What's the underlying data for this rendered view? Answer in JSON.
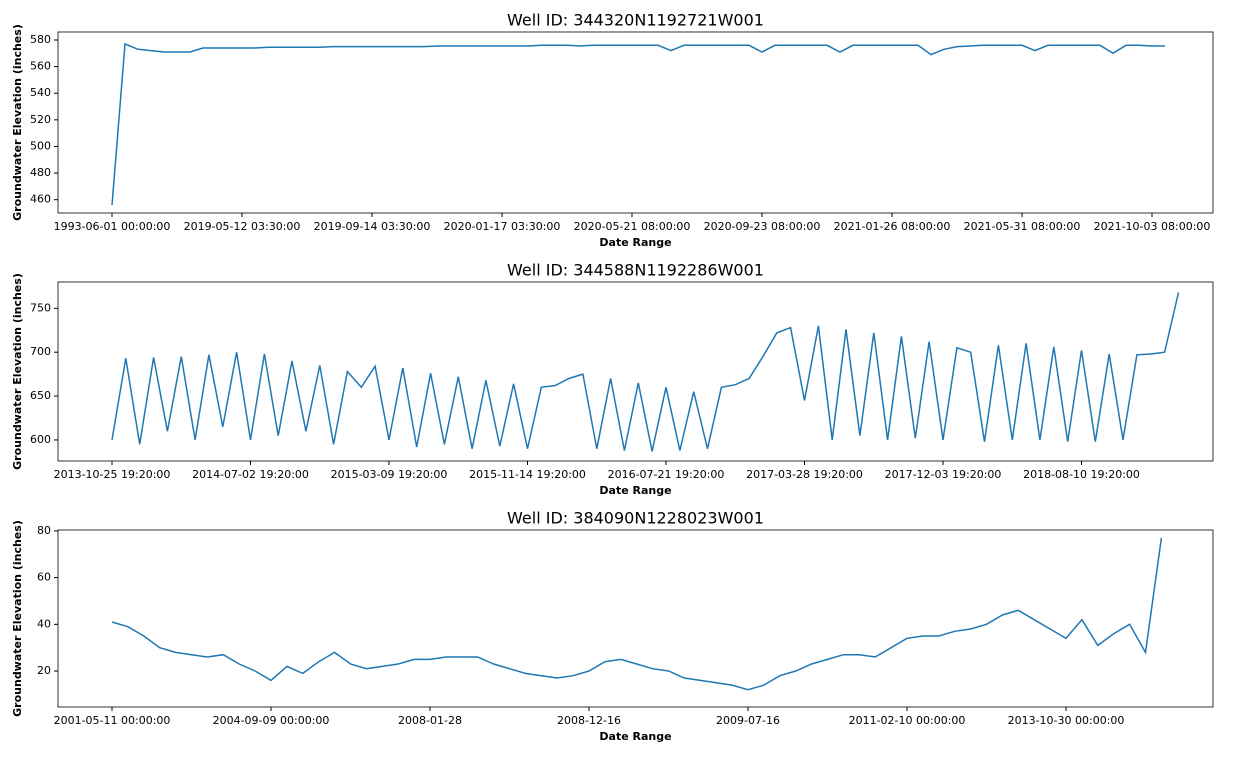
{
  "chart_data": [
    {
      "type": "line",
      "title": "Well ID: 344320N1192721W001",
      "x_label": "Date Range",
      "y_label": "Groundwater Elevation (inches)",
      "color": "#1f77b4",
      "categories": [
        "1993-06-01 00:00:00",
        null,
        null,
        null,
        null,
        null,
        null,
        null,
        null,
        null,
        "2019-05-12 03:30:00",
        null,
        null,
        null,
        null,
        null,
        null,
        null,
        null,
        null,
        "2019-09-14 03:30:00",
        null,
        null,
        null,
        null,
        null,
        null,
        null,
        null,
        null,
        "2020-01-17 03:30:00",
        null,
        null,
        null,
        null,
        null,
        null,
        null,
        null,
        null,
        "2020-05-21 08:00:00",
        null,
        null,
        null,
        null,
        null,
        null,
        null,
        null,
        null,
        "2020-09-23 08:00:00",
        null,
        null,
        null,
        null,
        null,
        null,
        null,
        null,
        null,
        "2021-01-26 08:00:00",
        null,
        null,
        null,
        null,
        null,
        null,
        null,
        null,
        null,
        "2021-05-31 08:00:00",
        null,
        null,
        null,
        null,
        null,
        null,
        null,
        null,
        null,
        "2021-10-03 08:00:00",
        null
      ],
      "values": [
        456,
        577,
        573,
        572,
        571,
        571,
        571,
        574,
        574,
        574,
        574,
        574,
        574.5,
        574.5,
        574.5,
        574.5,
        574.5,
        575,
        575,
        575,
        575,
        575,
        575,
        575,
        575,
        575.5,
        575.5,
        575.5,
        575.5,
        575.5,
        575.5,
        575.5,
        575.5,
        576,
        576,
        576,
        575.5,
        576,
        576,
        576,
        576,
        576,
        576,
        572,
        576,
        576,
        576,
        576,
        576,
        576,
        571,
        576,
        576,
        576,
        576,
        576,
        571,
        576,
        576,
        576,
        576,
        576,
        576,
        569,
        573,
        575,
        575.5,
        576,
        576,
        576,
        576,
        572,
        576,
        576,
        576,
        576,
        576,
        570,
        576,
        576,
        575.5,
        575.5
      ],
      "ylim": [
        450,
        586
      ],
      "yticks": [
        460,
        480,
        500,
        520,
        540,
        560,
        580
      ]
    },
    {
      "type": "line",
      "title": "Well ID: 344588N1192286W001",
      "x_label": "Date Range",
      "y_label": "Groundwater Elevation (inches)",
      "color": "#1f77b4",
      "categories": [
        "2013-10-25 19:20:00",
        null,
        null,
        null,
        null,
        null,
        null,
        null,
        null,
        null,
        "2014-07-02 19:20:00",
        null,
        null,
        null,
        null,
        null,
        null,
        null,
        null,
        null,
        "2015-03-09 19:20:00",
        null,
        null,
        null,
        null,
        null,
        null,
        null,
        null,
        null,
        "2015-11-14 19:20:00",
        null,
        null,
        null,
        null,
        null,
        null,
        null,
        null,
        null,
        "2016-07-21 19:20:00",
        null,
        null,
        null,
        null,
        null,
        null,
        null,
        null,
        null,
        "2017-03-28 19:20:00",
        null,
        null,
        null,
        null,
        null,
        null,
        null,
        null,
        null,
        "2017-12-03 19:20:00",
        null,
        null,
        null,
        null,
        null,
        null,
        null,
        null,
        null,
        "2018-08-10 19:20:00",
        null,
        null,
        null,
        null,
        null,
        null,
        null
      ],
      "values": [
        600,
        693,
        595,
        694,
        610,
        695,
        600,
        697,
        615,
        700,
        600,
        698,
        605,
        690,
        610,
        685,
        595,
        678,
        660,
        684,
        600,
        682,
        592,
        676,
        595,
        672,
        590,
        668,
        593,
        664,
        590,
        660,
        662,
        670,
        675,
        590,
        670,
        588,
        665,
        587,
        660,
        588,
        655,
        590,
        660,
        663,
        670,
        695,
        722,
        728,
        645,
        730,
        600,
        726,
        605,
        722,
        600,
        718,
        602,
        712,
        600,
        705,
        700,
        598,
        708,
        600,
        710,
        600,
        706,
        598,
        702,
        598,
        698,
        600,
        697,
        698,
        700,
        768
      ],
      "ylim": [
        576,
        780
      ],
      "yticks": [
        600,
        650,
        700,
        750
      ]
    },
    {
      "type": "line",
      "title": "Well ID: 384090N1228023W001",
      "x_label": "Date Range",
      "y_label": "Groundwater Elevation (inches)",
      "color": "#1f77b4",
      "categories": [
        "2001-05-11 00:00:00",
        null,
        null,
        null,
        null,
        null,
        null,
        null,
        null,
        null,
        "2004-09-09 00:00:00",
        null,
        null,
        null,
        null,
        null,
        null,
        null,
        null,
        null,
        "2008-01-28",
        null,
        null,
        null,
        null,
        null,
        null,
        null,
        null,
        null,
        "2008-12-16",
        null,
        null,
        null,
        null,
        null,
        null,
        null,
        null,
        null,
        "2009-07-16",
        null,
        null,
        null,
        null,
        null,
        null,
        null,
        null,
        null,
        "2011-02-10 00:00:00",
        null,
        null,
        null,
        null,
        null,
        null,
        null,
        null,
        null,
        "2013-10-30 00:00:00",
        null,
        null,
        null,
        null,
        null,
        null
      ],
      "values": [
        41,
        39,
        35,
        30,
        28,
        27,
        26,
        27,
        23,
        20,
        16,
        22,
        19,
        24,
        28,
        23,
        21,
        22,
        23,
        25,
        25,
        26,
        26,
        26,
        23,
        21,
        19,
        18,
        17,
        18,
        20,
        24,
        25,
        23,
        21,
        20,
        17,
        16,
        15,
        14,
        12,
        14,
        18,
        20,
        23,
        25,
        27,
        27,
        26,
        30,
        34,
        35,
        35,
        37,
        38,
        40,
        44,
        46,
        42,
        38,
        34,
        42,
        31,
        36,
        40,
        28,
        77
      ],
      "ylim": [
        4.6,
        80.4
      ],
      "yticks": [
        20,
        40,
        60,
        80
      ]
    }
  ]
}
